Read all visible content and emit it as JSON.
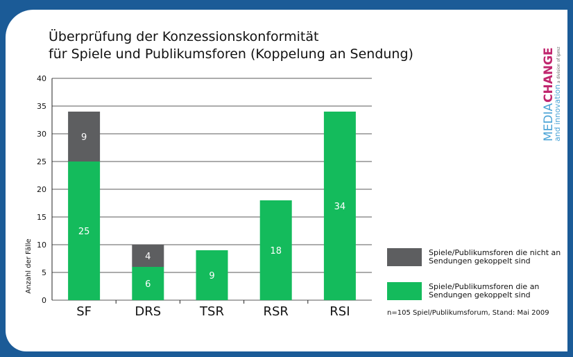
{
  "chart_data": {
    "type": "stacked-bar",
    "title": [
      "Überprüfung der Konzessionskonformität",
      "für Spiele und Publikumsforen (Koppelung an Sendung)"
    ],
    "y_label": "Anzahl der Fälle",
    "categories": [
      "SF",
      "DRS",
      "TSR",
      "RSR",
      "RSI"
    ],
    "series": [
      {
        "name": "Spiele/Publikumsforen die an Sendungen gekoppelt sind",
        "color": "#14bb5c",
        "values": [
          25,
          6,
          9,
          18,
          34
        ]
      },
      {
        "name": "Spiele/Publikumsforen die nicht an Sendungen gekoppelt sind",
        "color": "#5d5e60",
        "values": [
          9,
          4,
          null,
          null,
          null
        ]
      }
    ],
    "ylim": [
      0,
      40
    ],
    "yticks": [
      0,
      5,
      10,
      15,
      20,
      25,
      30,
      35,
      40
    ],
    "grid": true,
    "footnote": "n=105 Spiel/Publikumsforum, Stand: Mai 2009",
    "logo": {
      "media": "MEDIA",
      "change": "CHANGE",
      "innovation": "and innovation",
      "division": "a division of ipmz"
    }
  }
}
